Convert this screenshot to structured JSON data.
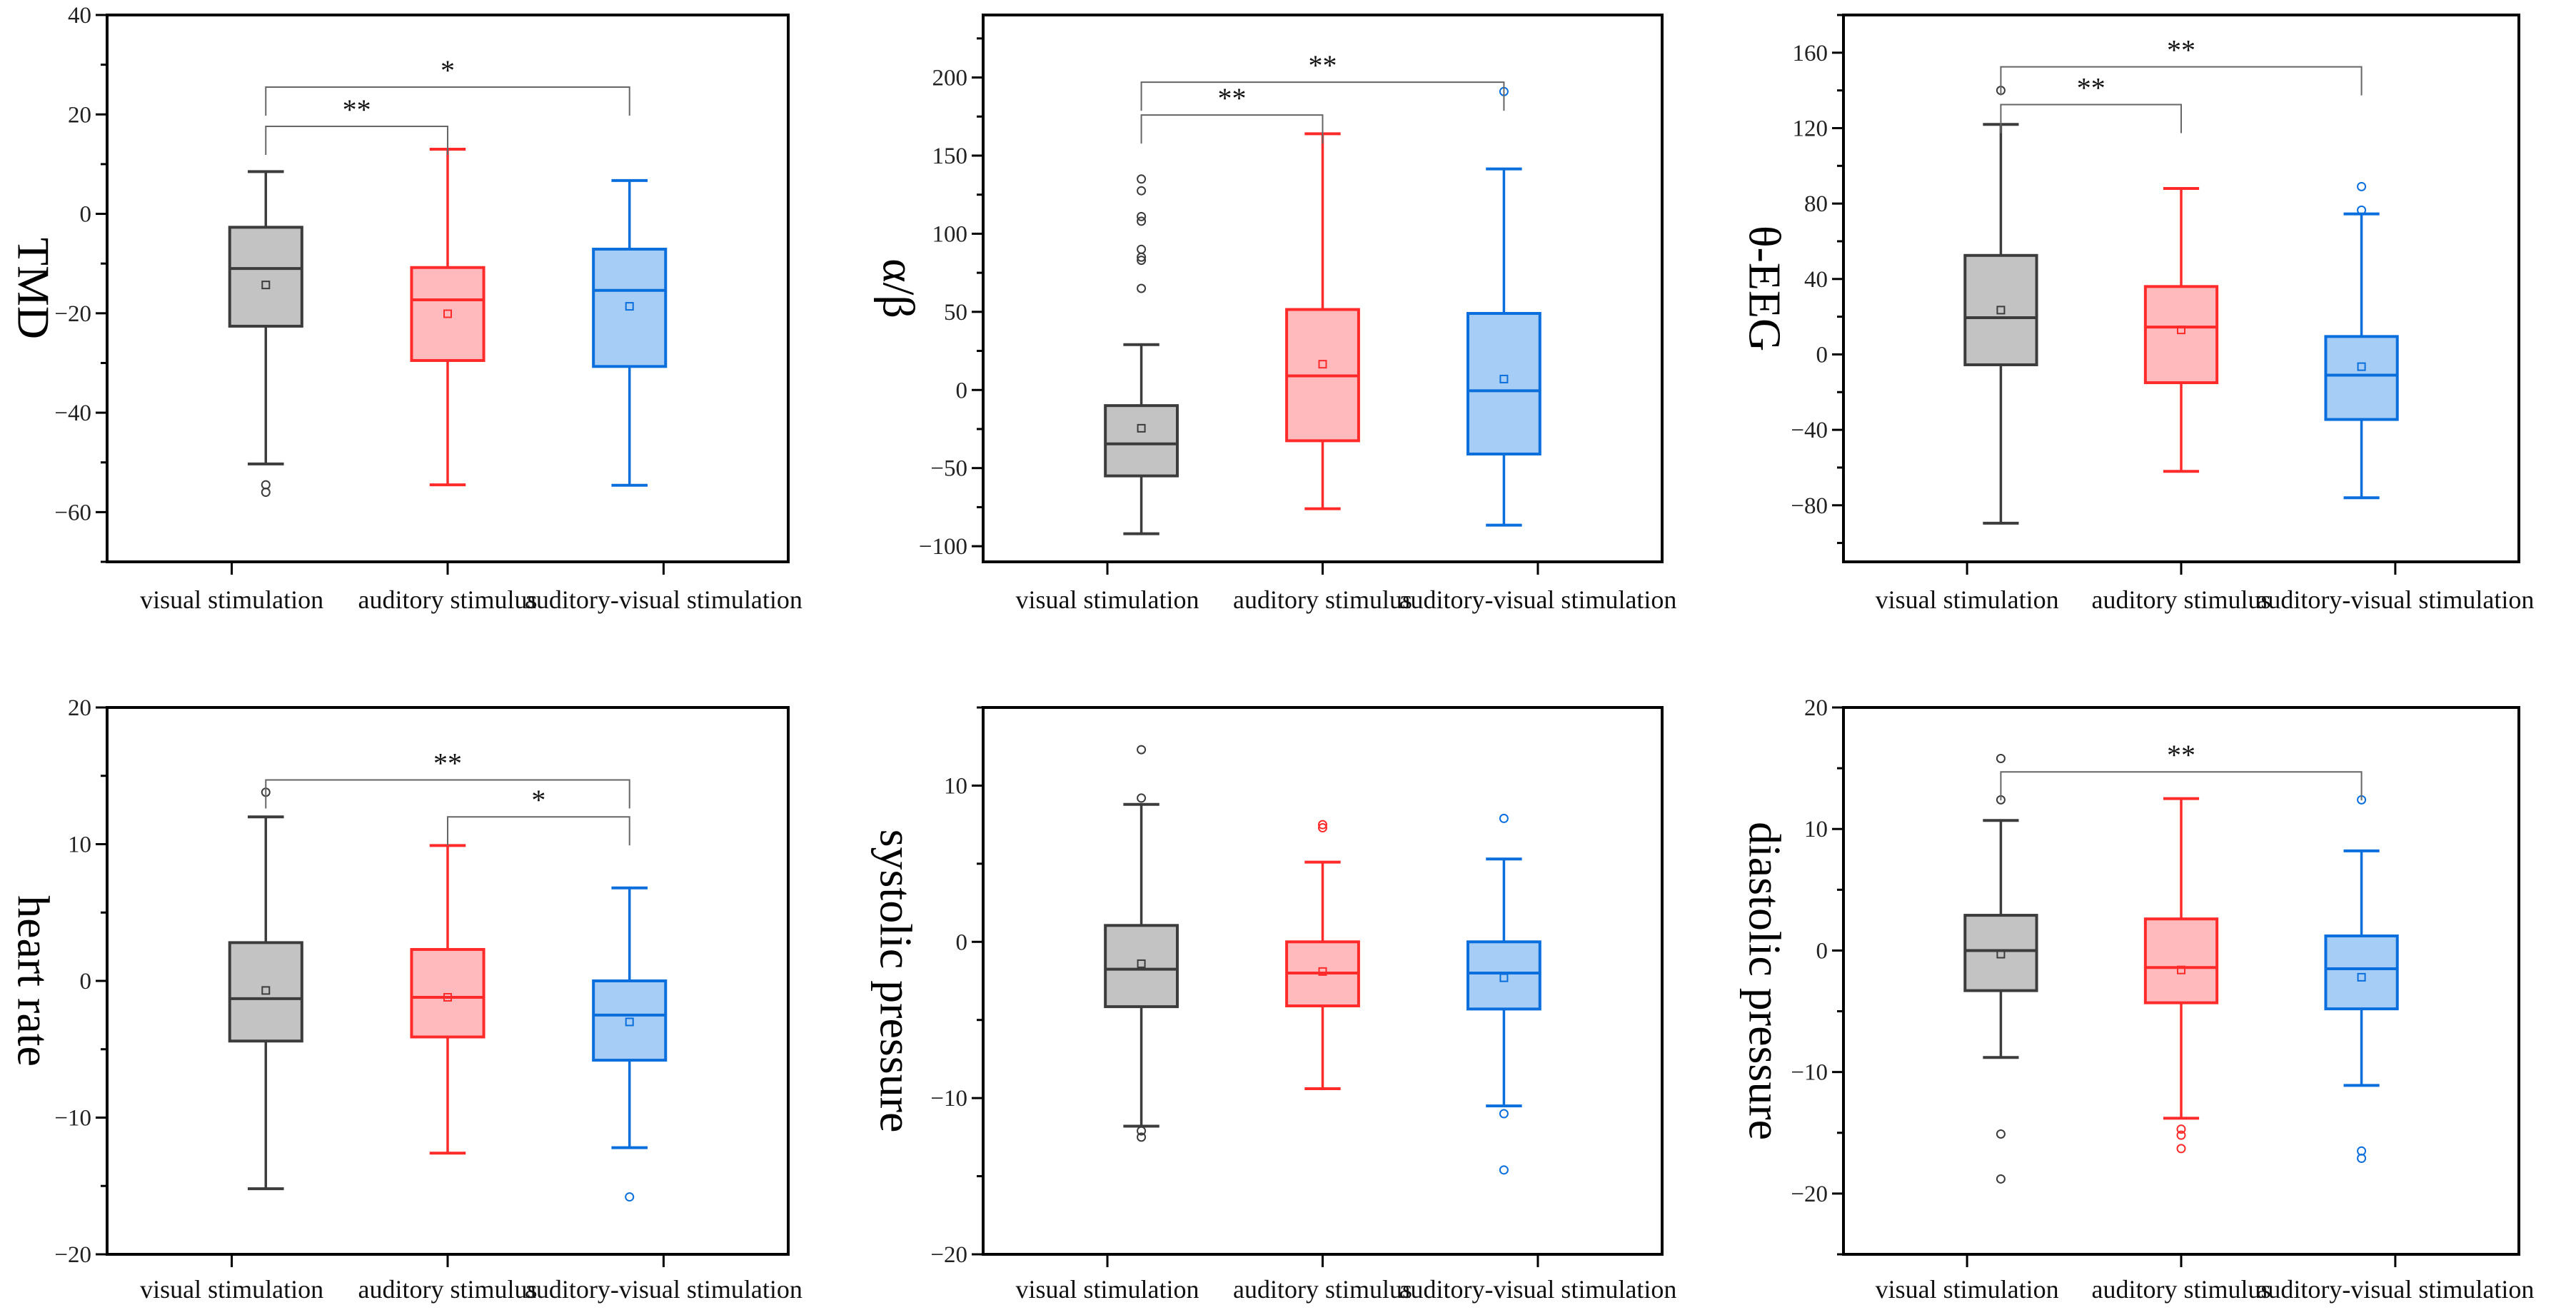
{
  "colors": {
    "visual stimulation": {
      "stroke": "#3c3c3c",
      "fill": "#c3c3c3"
    },
    "auditory stimulus": {
      "stroke": "#ff2b2b",
      "fill": "#ffbabe"
    },
    "auditory-visual stimulation": {
      "stroke": "#0a6fdc",
      "fill": "#a6cdf5"
    }
  },
  "chart_data": [
    {
      "type": "box",
      "ylabel": "TMD",
      "categories": [
        "visual stimulation",
        "auditory stimulus",
        "auditory-visual stimulation"
      ],
      "ylim": [
        -70,
        40
      ],
      "yticks": [
        40,
        20,
        0,
        -20,
        -40,
        -60
      ],
      "minor_step": 10,
      "boxes": [
        {
          "whisker_high": 8.5,
          "q3": -2.7,
          "median": -11,
          "mean": -14.3,
          "q1": -22.6,
          "whisker_low": -50.3,
          "outliers": [
            -54.5,
            -56
          ]
        },
        {
          "whisker_high": 13,
          "q3": -10.8,
          "median": -17.3,
          "mean": -20.1,
          "q1": -29.5,
          "whisker_low": -54.5,
          "outliers": []
        },
        {
          "whisker_high": 6.7,
          "q3": -7.1,
          "median": -15.4,
          "mean": -18.6,
          "q1": -30.7,
          "whisker_low": -54.6,
          "outliers": []
        }
      ],
      "significance": [
        {
          "from": 0,
          "to": 1,
          "level": 17.6,
          "label": "**"
        },
        {
          "from": 0,
          "to": 2,
          "level": 25.5,
          "label": "*"
        }
      ]
    },
    {
      "type": "box",
      "ylabel": "α/β",
      "categories": [
        "visual stimulation",
        "auditory stimulus",
        "auditory-visual stimulation"
      ],
      "ylim": [
        -110,
        240
      ],
      "yticks": [
        200,
        150,
        100,
        50,
        0,
        -50,
        -100
      ],
      "minor_step": 25,
      "boxes": [
        {
          "whisker_high": 29,
          "q3": -10,
          "median": -34.5,
          "mean": -24.5,
          "q1": -55,
          "whisker_low": -92,
          "outliers": [
            135,
            127.5,
            111,
            108,
            90,
            85,
            83,
            65
          ]
        },
        {
          "whisker_high": 164,
          "q3": 51.5,
          "median": 9,
          "mean": 16.5,
          "q1": -32.5,
          "whisker_low": -76,
          "outliers": []
        },
        {
          "whisker_high": 141.5,
          "q3": 49,
          "median": -0.5,
          "mean": 7,
          "q1": -41,
          "whisker_low": -86.5,
          "outliers": [
            191
          ]
        }
      ],
      "significance": [
        {
          "from": 0,
          "to": 1,
          "level": 176,
          "label": "**"
        },
        {
          "from": 0,
          "to": 2,
          "level": 197,
          "label": "**"
        }
      ]
    },
    {
      "type": "box",
      "ylabel": "θ-EEG",
      "categories": [
        "visual stimulation",
        "auditory stimulus",
        "auditory-visual stimulation"
      ],
      "ylim": [
        -110,
        180
      ],
      "yticks": [
        160,
        120,
        80,
        40,
        0,
        -40,
        -80
      ],
      "minor_step": 20,
      "boxes": [
        {
          "whisker_high": 122,
          "q3": 52.5,
          "median": 19.5,
          "mean": 23.5,
          "q1": -5.5,
          "whisker_low": -89.5,
          "outliers": [
            140
          ]
        },
        {
          "whisker_high": 88,
          "q3": 36,
          "median": 14.5,
          "mean": 13,
          "q1": -15,
          "whisker_low": -62,
          "outliers": []
        },
        {
          "whisker_high": 74.5,
          "q3": 9.5,
          "median": -11,
          "mean": -6.5,
          "q1": -34.5,
          "whisker_low": -76,
          "outliers": [
            89,
            76.5
          ]
        }
      ],
      "significance": [
        {
          "from": 0,
          "to": 1,
          "level": 132.5,
          "label": "**"
        },
        {
          "from": 0,
          "to": 2,
          "level": 152.5,
          "label": "**"
        }
      ]
    },
    {
      "type": "box",
      "ylabel": "heart rate",
      "categories": [
        "visual stimulation",
        "auditory stimulus",
        "auditory-visual stimulation"
      ],
      "ylim": [
        -20,
        20
      ],
      "yticks": [
        20,
        10,
        0,
        -10,
        -20
      ],
      "minor_step": 5,
      "boxes": [
        {
          "whisker_high": 12,
          "q3": 2.8,
          "median": -1.3,
          "mean": -0.7,
          "q1": -4.4,
          "whisker_low": -15.2,
          "outliers": [
            13.8
          ]
        },
        {
          "whisker_high": 9.9,
          "q3": 2.3,
          "median": -1.2,
          "mean": -1.2,
          "q1": -4.1,
          "whisker_low": -12.6,
          "outliers": []
        },
        {
          "whisker_high": 6.8,
          "q3": 0,
          "median": -2.5,
          "mean": -3,
          "q1": -5.8,
          "whisker_low": -12.2,
          "outliers": [
            -15.8
          ]
        }
      ],
      "significance": [
        {
          "from": 0,
          "to": 2,
          "level": 14.7,
          "label": "**"
        },
        {
          "from": 1,
          "to": 2,
          "level": 12,
          "label": "*"
        }
      ]
    },
    {
      "type": "box",
      "ylabel": "systolic pressure",
      "categories": [
        "visual stimulation",
        "auditory stimulus",
        "auditory-visual stimulation"
      ],
      "ylim": [
        -20,
        15
      ],
      "yticks": [
        10,
        0,
        -10,
        -20
      ],
      "minor_step": 5,
      "boxes": [
        {
          "whisker_high": 8.8,
          "q3": 1.05,
          "median": -1.75,
          "mean": -1.4,
          "q1": -4.15,
          "whisker_low": -11.8,
          "outliers": [
            12.3,
            9.2,
            -12.1,
            -12.5
          ]
        },
        {
          "whisker_high": 5.1,
          "q3": 0,
          "median": -2,
          "mean": -1.9,
          "q1": -4.1,
          "whisker_low": -9.4,
          "outliers": [
            7.5,
            7.3
          ]
        },
        {
          "whisker_high": 5.3,
          "q3": 0,
          "median": -2,
          "mean": -2.3,
          "q1": -4.3,
          "whisker_low": -10.5,
          "outliers": [
            7.9,
            -11,
            -14.6
          ]
        }
      ],
      "significance": []
    },
    {
      "type": "box",
      "ylabel": "diastolic pressure",
      "categories": [
        "visual stimulation",
        "auditory stimulus",
        "auditory-visual stimulation"
      ],
      "ylim": [
        -25,
        20
      ],
      "yticks": [
        20,
        10,
        0,
        -10,
        -20
      ],
      "minor_step": 5,
      "boxes": [
        {
          "whisker_high": 10.7,
          "q3": 2.9,
          "median": 0,
          "mean": -0.3,
          "q1": -3.3,
          "whisker_low": -8.8,
          "outliers": [
            15.8,
            12.4,
            -15.1,
            -18.8
          ]
        },
        {
          "whisker_high": 12.5,
          "q3": 2.6,
          "median": -1.4,
          "mean": -1.6,
          "q1": -4.3,
          "whisker_low": -13.8,
          "outliers": [
            -14.7,
            -15.2,
            -16.3
          ]
        },
        {
          "whisker_high": 8.2,
          "q3": 1.2,
          "median": -1.5,
          "mean": -2.2,
          "q1": -4.8,
          "whisker_low": -11.1,
          "outliers": [
            12.4,
            -16.5,
            -17.1
          ]
        }
      ],
      "significance": [
        {
          "from": 0,
          "to": 2,
          "level": 14.7,
          "label": "**"
        }
      ]
    }
  ]
}
